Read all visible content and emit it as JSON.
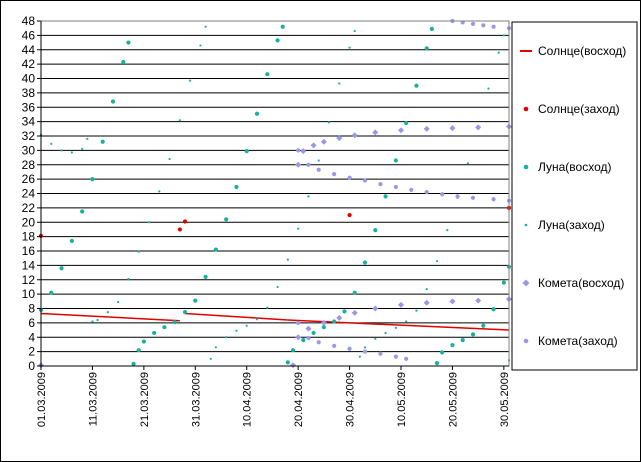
{
  "chart_data": {
    "type": "scatter",
    "title": "",
    "xlabel": "",
    "ylabel": "",
    "ylim": [
      0,
      48
    ],
    "ytick_step": 2,
    "x_range": [
      "01.03.2009",
      "31.05.2009"
    ],
    "x_tick_labels": [
      "01.03.2009",
      "11.03.2009",
      "21.03.2009",
      "31.03.2009",
      "10.04.2009",
      "20.04.2009",
      "30.04.2009",
      "10.05.2009",
      "20.05.2009",
      "30.05.2009"
    ],
    "grid": {
      "horizontal": true,
      "vertical": false
    },
    "legend_position": "right",
    "series": [
      {
        "name": "Солнце(восход)",
        "color": "#e00000",
        "marker": "line",
        "points": [
          [
            "01.03.2009",
            7.3
          ],
          [
            "28.03.2009",
            6.3
          ],
          [
            "29.03.2009",
            7.3
          ],
          [
            "18.04.2009",
            6.4
          ],
          [
            "30.04.2009",
            6.0
          ],
          [
            "31.05.2009",
            5.0
          ]
        ]
      },
      {
        "name": "Солнце(заход)",
        "color": "#e00000",
        "marker": "dot",
        "points": [
          [
            "01.03.2009",
            18.1
          ],
          [
            "28.03.2009",
            19.0
          ],
          [
            "29.03.2009",
            20.1
          ],
          [
            "30.04.2009",
            21.0
          ],
          [
            "31.05.2009",
            22.0
          ]
        ]
      },
      {
        "name": "Луна(восход)",
        "color": "#1ab0a0",
        "marker": "dot",
        "points": [
          [
            "01.03.2009",
            7.8
          ],
          [
            "03.03.2009",
            10.2
          ],
          [
            "05.03.2009",
            13.6
          ],
          [
            "07.03.2009",
            17.4
          ],
          [
            "09.03.2009",
            21.5
          ],
          [
            "11.03.2009",
            26.0
          ],
          [
            "13.03.2009",
            31.2
          ],
          [
            "15.03.2009",
            36.8
          ],
          [
            "17.03.2009",
            42.3
          ],
          [
            "18.03.2009",
            45.0
          ],
          [
            "19.03.2009",
            0.3
          ],
          [
            "20.03.2009",
            2.2
          ],
          [
            "21.03.2009",
            3.4
          ],
          [
            "23.03.2009",
            4.6
          ],
          [
            "25.03.2009",
            5.4
          ],
          [
            "27.03.2009",
            6.1
          ],
          [
            "29.03.2009",
            7.5
          ],
          [
            "31.03.2009",
            9.1
          ],
          [
            "02.04.2009",
            12.4
          ],
          [
            "04.04.2009",
            16.2
          ],
          [
            "06.04.2009",
            20.4
          ],
          [
            "08.04.2009",
            24.9
          ],
          [
            "10.04.2009",
            29.9
          ],
          [
            "12.04.2009",
            35.1
          ],
          [
            "14.04.2009",
            40.6
          ],
          [
            "16.04.2009",
            45.3
          ],
          [
            "17.04.2009",
            47.2
          ],
          [
            "18.04.2009",
            0.5
          ],
          [
            "19.04.2009",
            2.2
          ],
          [
            "21.04.2009",
            3.6
          ],
          [
            "23.04.2009",
            4.6
          ],
          [
            "25.04.2009",
            5.4
          ],
          [
            "27.04.2009",
            6.2
          ],
          [
            "29.04.2009",
            7.6
          ],
          [
            "01.05.2009",
            10.2
          ],
          [
            "03.05.2009",
            14.4
          ],
          [
            "05.05.2009",
            18.9
          ],
          [
            "07.05.2009",
            23.6
          ],
          [
            "09.05.2009",
            28.6
          ],
          [
            "11.05.2009",
            33.8
          ],
          [
            "13.05.2009",
            39.0
          ],
          [
            "15.05.2009",
            44.2
          ],
          [
            "16.05.2009",
            46.9
          ],
          [
            "17.05.2009",
            0.4
          ],
          [
            "18.05.2009",
            1.9
          ],
          [
            "20.05.2009",
            2.9
          ],
          [
            "22.05.2009",
            3.6
          ],
          [
            "24.05.2009",
            4.4
          ],
          [
            "26.05.2009",
            5.6
          ],
          [
            "28.05.2009",
            7.9
          ],
          [
            "30.05.2009",
            11.6
          ],
          [
            "31.05.2009",
            13.8
          ]
        ]
      },
      {
        "name": "Луна(заход)",
        "color": "#1ab0a0",
        "marker": "small-dot",
        "points": [
          [
            "01.03.2009",
            32.2
          ],
          [
            "03.03.2009",
            30.9
          ],
          [
            "05.03.2009",
            30.0
          ],
          [
            "07.03.2009",
            29.7
          ],
          [
            "09.03.2009",
            30.2
          ],
          [
            "10.03.2009",
            31.6
          ],
          [
            "11.03.2009",
            6.2
          ],
          [
            "12.03.2009",
            6.4
          ],
          [
            "14.03.2009",
            7.5
          ],
          [
            "16.03.2009",
            8.9
          ],
          [
            "18.03.2009",
            12.1
          ],
          [
            "20.03.2009",
            15.9
          ],
          [
            "22.03.2009",
            20.0
          ],
          [
            "24.03.2009",
            24.3
          ],
          [
            "26.03.2009",
            28.8
          ],
          [
            "28.03.2009",
            34.2
          ],
          [
            "30.03.2009",
            39.7
          ],
          [
            "01.04.2009",
            44.6
          ],
          [
            "02.04.2009",
            47.2
          ],
          [
            "03.04.2009",
            1.0
          ],
          [
            "04.04.2009",
            2.6
          ],
          [
            "06.04.2009",
            4.0
          ],
          [
            "08.04.2009",
            4.9
          ],
          [
            "10.04.2009",
            5.6
          ],
          [
            "12.04.2009",
            6.5
          ],
          [
            "14.04.2009",
            8.1
          ],
          [
            "16.04.2009",
            11.0
          ],
          [
            "18.04.2009",
            14.8
          ],
          [
            "20.04.2009",
            19.1
          ],
          [
            "22.04.2009",
            23.6
          ],
          [
            "24.04.2009",
            28.6
          ],
          [
            "26.04.2009",
            33.9
          ],
          [
            "28.04.2009",
            39.3
          ],
          [
            "30.04.2009",
            44.3
          ],
          [
            "01.05.2009",
            46.6
          ],
          [
            "02.05.2009",
            1.3
          ],
          [
            "03.05.2009",
            2.6
          ],
          [
            "05.05.2009",
            3.8
          ],
          [
            "07.05.2009",
            4.6
          ],
          [
            "09.05.2009",
            5.3
          ],
          [
            "11.05.2009",
            6.2
          ],
          [
            "13.05.2009",
            7.7
          ],
          [
            "15.05.2009",
            10.7
          ],
          [
            "17.05.2009",
            14.6
          ],
          [
            "19.05.2009",
            18.9
          ],
          [
            "21.05.2009",
            23.4
          ],
          [
            "23.05.2009",
            28.2
          ],
          [
            "25.05.2009",
            33.4
          ],
          [
            "27.05.2009",
            38.6
          ],
          [
            "29.05.2009",
            43.6
          ],
          [
            "30.05.2009",
            46.0
          ],
          [
            "31.05.2009",
            0.8
          ]
        ]
      },
      {
        "name": "Комета(восход)",
        "color": "#9b97e8",
        "marker": "diamond",
        "points": [
          [
            "01.03.2009",
            0.1
          ],
          [
            "19.04.2009",
            0.1
          ],
          [
            "20.04.2009",
            4.0
          ],
          [
            "22.04.2009",
            5.2
          ],
          [
            "25.04.2009",
            6.0
          ],
          [
            "28.04.2009",
            6.7
          ],
          [
            "01.05.2009",
            7.4
          ],
          [
            "05.05.2009",
            8.0
          ],
          [
            "10.05.2009",
            8.5
          ],
          [
            "15.05.2009",
            8.8
          ],
          [
            "20.05.2009",
            9.0
          ],
          [
            "25.05.2009",
            9.1
          ],
          [
            "31.05.2009",
            9.3
          ],
          [
            "20.04.2009",
            28.0
          ],
          [
            "21.04.2009",
            29.9
          ],
          [
            "23.04.2009",
            30.7
          ],
          [
            "25.04.2009",
            31.2
          ],
          [
            "28.04.2009",
            31.7
          ],
          [
            "01.05.2009",
            32.1
          ],
          [
            "05.05.2009",
            32.5
          ],
          [
            "10.05.2009",
            32.8
          ],
          [
            "15.05.2009",
            33.0
          ],
          [
            "20.05.2009",
            33.1
          ],
          [
            "25.05.2009",
            33.2
          ],
          [
            "31.05.2009",
            33.3
          ]
        ]
      },
      {
        "name": "Комета(заход)",
        "color": "#9b97e8",
        "marker": "dot",
        "points": [
          [
            "20.04.2009",
            6.0
          ],
          [
            "22.04.2009",
            3.9
          ],
          [
            "24.04.2009",
            3.3
          ],
          [
            "27.04.2009",
            2.8
          ],
          [
            "30.04.2009",
            2.4
          ],
          [
            "03.05.2009",
            2.0
          ],
          [
            "06.05.2009",
            1.7
          ],
          [
            "09.05.2009",
            1.3
          ],
          [
            "11.05.2009",
            1.0
          ],
          [
            "20.04.2009",
            30.0
          ],
          [
            "22.04.2009",
            28.0
          ],
          [
            "24.04.2009",
            27.3
          ],
          [
            "27.04.2009",
            26.7
          ],
          [
            "30.04.2009",
            26.2
          ],
          [
            "03.05.2009",
            25.8
          ],
          [
            "06.05.2009",
            25.3
          ],
          [
            "09.05.2009",
            24.9
          ],
          [
            "12.05.2009",
            24.5
          ],
          [
            "15.05.2009",
            24.2
          ],
          [
            "18.05.2009",
            23.9
          ],
          [
            "21.05.2009",
            23.6
          ],
          [
            "24.05.2009",
            23.4
          ],
          [
            "28.05.2009",
            23.2
          ],
          [
            "31.05.2009",
            23.0
          ],
          [
            "20.05.2009",
            48.0
          ],
          [
            "22.05.2009",
            47.8
          ],
          [
            "24.05.2009",
            47.6
          ],
          [
            "26.05.2009",
            47.4
          ],
          [
            "28.05.2009",
            47.2
          ],
          [
            "31.05.2009",
            47.0
          ]
        ]
      }
    ]
  }
}
